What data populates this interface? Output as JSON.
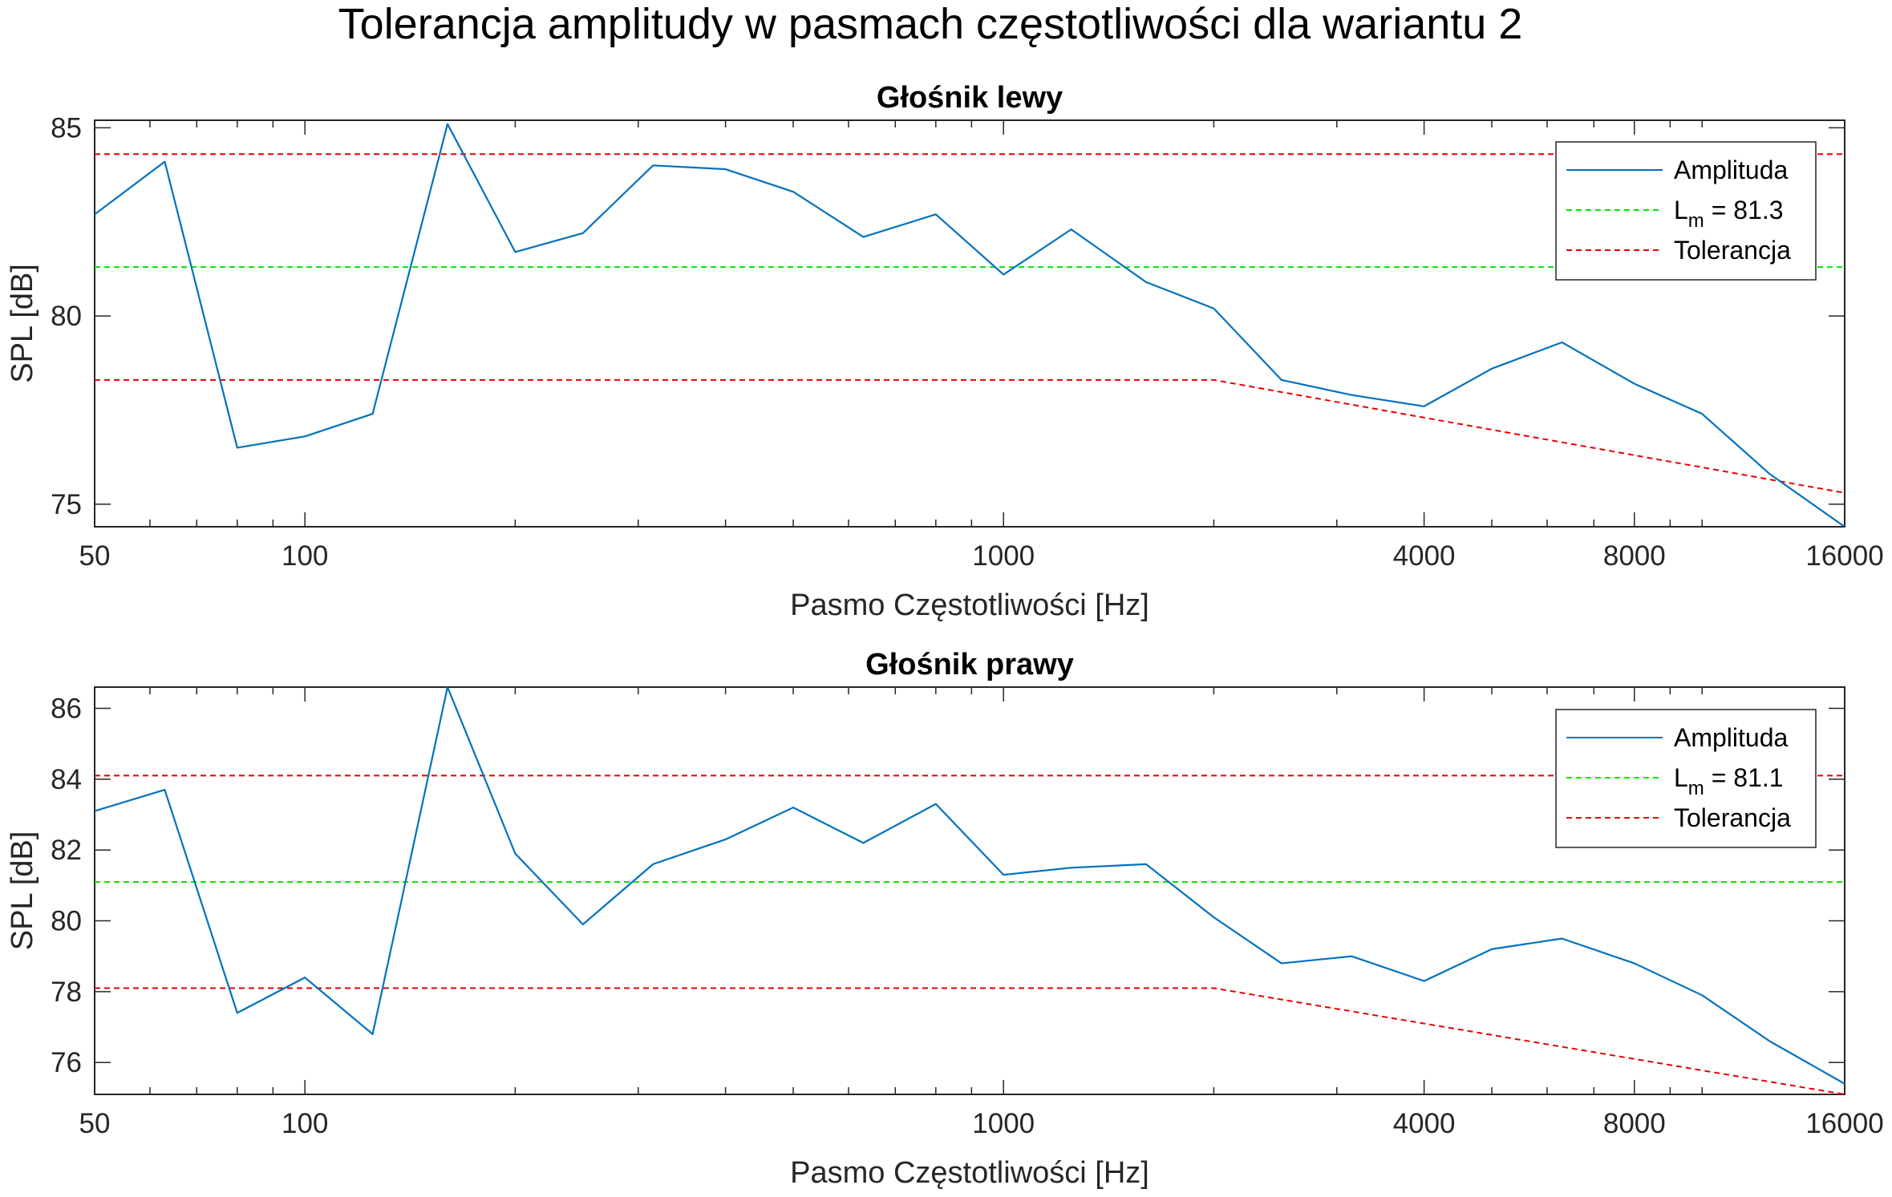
{
  "figure_title": "Tolerancja amplitudy w pasmach częstotliwości dla wariantu 2",
  "chart_data": [
    {
      "type": "line",
      "title": "Głośnik lewy",
      "xlabel": "Pasmo Częstotliwości [Hz]",
      "ylabel": "SPL [dB]",
      "xscale": "log",
      "xlim": [
        50,
        16000
      ],
      "ylim": [
        74.4,
        85.2
      ],
      "xticks": [
        50,
        100,
        1000,
        4000,
        8000,
        16000
      ],
      "yticks": [
        75,
        80,
        85
      ],
      "grid": false,
      "legend_position": "top-right",
      "series": [
        {
          "name": "Amplituda",
          "color": "#0072BD",
          "style": "solid",
          "x": [
            50,
            63,
            80,
            100,
            125,
            160,
            200,
            250,
            315,
            400,
            500,
            630,
            800,
            1000,
            1250,
            1600,
            2000,
            2500,
            3150,
            4000,
            5000,
            6300,
            8000,
            10000,
            12500,
            16000
          ],
          "y": [
            82.7,
            84.1,
            76.5,
            76.8,
            77.4,
            85.1,
            81.7,
            82.2,
            84.0,
            83.9,
            83.3,
            82.1,
            82.7,
            81.1,
            82.3,
            80.9,
            80.2,
            78.3,
            77.9,
            77.6,
            78.6,
            79.3,
            78.2,
            77.4,
            75.8,
            74.4
          ]
        },
        {
          "name": "L",
          "name_subscript": "m",
          "name_suffix": " = 81.3",
          "color": "#00E600",
          "style": "dashed",
          "x": [
            50,
            16000
          ],
          "y": [
            81.3,
            81.3
          ]
        },
        {
          "name": "Tolerancja",
          "color": "#E60000",
          "style": "dashed",
          "x": [
            50,
            16000
          ],
          "y": [
            84.3,
            84.3
          ]
        },
        {
          "name": "",
          "color": "#E60000",
          "style": "dashed",
          "x": [
            50,
            2000,
            16000
          ],
          "y": [
            78.3,
            78.3,
            75.3
          ]
        }
      ]
    },
    {
      "type": "line",
      "title": "Głośnik prawy",
      "xlabel": "Pasmo Częstotliwości [Hz]",
      "ylabel": "SPL [dB]",
      "xscale": "log",
      "xlim": [
        50,
        16000
      ],
      "ylim": [
        75.1,
        86.6
      ],
      "xticks": [
        50,
        100,
        1000,
        4000,
        8000,
        16000
      ],
      "yticks": [
        76,
        78,
        80,
        82,
        84,
        86
      ],
      "grid": false,
      "legend_position": "top-right",
      "series": [
        {
          "name": "Amplituda",
          "color": "#0072BD",
          "style": "solid",
          "x": [
            50,
            63,
            80,
            100,
            125,
            160,
            200,
            250,
            315,
            400,
            500,
            630,
            800,
            1000,
            1250,
            1600,
            2000,
            2500,
            3150,
            4000,
            5000,
            6300,
            8000,
            10000,
            12500,
            16000
          ],
          "y": [
            83.1,
            83.7,
            77.4,
            78.4,
            76.8,
            86.6,
            81.9,
            79.9,
            81.6,
            82.3,
            83.2,
            82.2,
            83.3,
            81.3,
            81.5,
            81.6,
            80.1,
            78.8,
            79.0,
            78.3,
            79.2,
            79.5,
            78.8,
            77.9,
            76.6,
            75.4
          ]
        },
        {
          "name": "L",
          "name_subscript": "m",
          "name_suffix": " = 81.1",
          "color": "#00E600",
          "style": "dashed",
          "x": [
            50,
            16000
          ],
          "y": [
            81.1,
            81.1
          ]
        },
        {
          "name": "Tolerancja",
          "color": "#E60000",
          "style": "dashed",
          "x": [
            50,
            16000
          ],
          "y": [
            84.1,
            84.1
          ]
        },
        {
          "name": "",
          "color": "#E60000",
          "style": "dashed",
          "x": [
            50,
            2000,
            16000
          ],
          "y": [
            78.1,
            78.1,
            75.1
          ]
        }
      ]
    }
  ]
}
